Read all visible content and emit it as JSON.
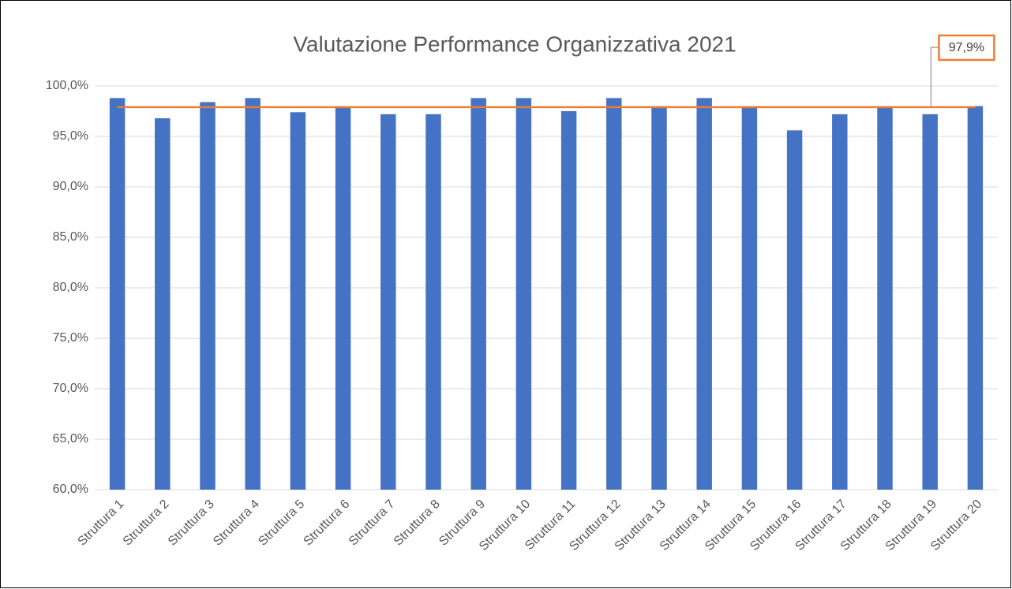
{
  "chart_data": {
    "type": "bar",
    "title": "Valutazione Performance Organizzativa 2021",
    "categories": [
      "Struttura 1",
      "Struttura 2",
      "Struttura 3",
      "Struttura 4",
      "Struttura 5",
      "Struttura 6",
      "Struttura 7",
      "Struttura 8",
      "Struttura 9",
      "Struttura 10",
      "Struttura 11",
      "Struttura 12",
      "Struttura 13",
      "Struttura 14",
      "Struttura 15",
      "Struttura 16",
      "Struttura 17",
      "Struttura 18",
      "Struttura 19",
      "Struttura 20"
    ],
    "values": [
      98.8,
      96.8,
      98.4,
      98.8,
      97.4,
      98.0,
      97.2,
      97.2,
      98.8,
      98.8,
      97.5,
      98.8,
      98.0,
      98.8,
      98.0,
      95.6,
      97.2,
      98.0,
      97.2,
      98.0
    ],
    "color": "#4472c4",
    "ylim": [
      60,
      100
    ],
    "yticks": [
      {
        "value": 60,
        "label": "60,0%"
      },
      {
        "value": 65,
        "label": "65,0%"
      },
      {
        "value": 70,
        "label": "70,0%"
      },
      {
        "value": 75,
        "label": "75,0%"
      },
      {
        "value": 80,
        "label": "80,0%"
      },
      {
        "value": 85,
        "label": "85,0%"
      },
      {
        "value": 90,
        "label": "90,0%"
      },
      {
        "value": 95,
        "label": "95,0%"
      },
      {
        "value": 100,
        "label": "100,0%"
      }
    ],
    "grid": true,
    "reference_line": {
      "value": 97.9,
      "label": "97,9%",
      "color": "#ed7d31"
    }
  }
}
